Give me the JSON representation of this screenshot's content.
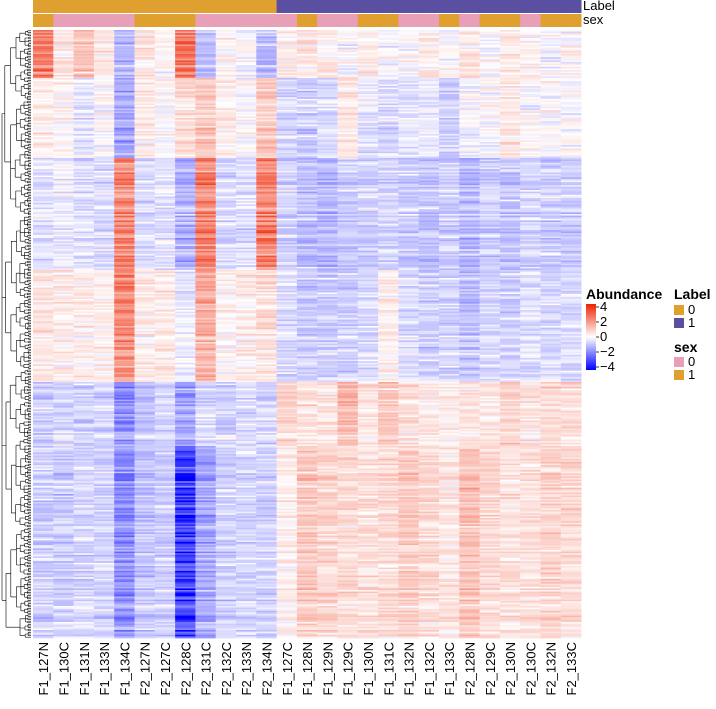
{
  "chart_data": {
    "type": "heatmap",
    "title": "",
    "samples": [
      "F1_127N",
      "F1_130C",
      "F1_131N",
      "F1_133N",
      "F1_134C",
      "F2_127N",
      "F2_127C",
      "F2_128C",
      "F2_131C",
      "F2_132C",
      "F2_133N",
      "F2_134N",
      "F1_127C",
      "F1_128N",
      "F1_129N",
      "F1_129C",
      "F1_130N",
      "F1_131C",
      "F1_132N",
      "F1_132C",
      "F1_133C",
      "F2_128N",
      "F2_129C",
      "F2_130N",
      "F2_130C",
      "F2_132N",
      "F2_133C"
    ],
    "annotations": [
      {
        "name": "Label",
        "values": [
          0,
          0,
          0,
          0,
          0,
          0,
          0,
          0,
          0,
          0,
          0,
          0,
          1,
          1,
          1,
          1,
          1,
          1,
          1,
          1,
          1,
          1,
          1,
          1,
          1,
          1,
          1
        ]
      },
      {
        "name": "sex",
        "values": [
          1,
          0,
          0,
          0,
          0,
          1,
          1,
          1,
          0,
          0,
          0,
          0,
          0,
          1,
          0,
          0,
          1,
          1,
          0,
          0,
          1,
          0,
          1,
          1,
          0,
          1,
          1
        ]
      }
    ],
    "annotation_colors": {
      "Label": {
        "0": "#E0A030",
        "1": "#5A4FA0"
      },
      "sex": {
        "0": "#E8A0B8",
        "1": "#E0A030"
      }
    },
    "color_scale": {
      "name": "Abundance",
      "range": [
        -4,
        4
      ],
      "ticks": [
        4,
        2,
        0,
        -2,
        -4
      ],
      "tick_labels": [
        "4",
        "2",
        "0",
        "−2",
        "−4"
      ],
      "low": "#0000FF",
      "mid": "#FFFFFF",
      "high": "#EE2200"
    },
    "row_dendrogram": true,
    "column_dendrogram": false,
    "legend_position": "right",
    "row_blocks": [
      {
        "rows": 30,
        "profile": [
          2.0,
          0.3,
          0.8,
          0.2,
          -0.8,
          0.3,
          0.1,
          2.2,
          -0.8,
          0.1,
          0.0,
          -0.8,
          0.2,
          0.3,
          0.2,
          0.0,
          0.2,
          -0.1,
          0.0,
          0.2,
          0.0,
          0.3,
          0.0,
          0.2,
          0.1,
          -0.1,
          0.0
        ]
      },
      {
        "rows": 50,
        "profile": [
          0.2,
          0.1,
          -0.3,
          0.0,
          -1.2,
          0.2,
          0.0,
          0.5,
          0.8,
          0.2,
          0.0,
          0.8,
          -0.5,
          -0.6,
          -0.4,
          0.3,
          -0.3,
          -0.4,
          -0.3,
          -0.2,
          -0.6,
          -0.1,
          0.0,
          0.3,
          0.0,
          0.0,
          0.0
        ]
      },
      {
        "rows": 70,
        "profile": [
          -0.3,
          -0.2,
          -0.3,
          -0.4,
          2.0,
          -0.4,
          -0.3,
          -1.0,
          2.0,
          -0.4,
          -0.4,
          2.0,
          -0.5,
          -0.8,
          -0.9,
          -0.6,
          -0.6,
          -0.5,
          -0.6,
          -0.7,
          -0.6,
          -0.9,
          -0.6,
          -0.7,
          -0.5,
          -0.6,
          -0.6
        ]
      },
      {
        "rows": 70,
        "profile": [
          0.3,
          0.2,
          0.2,
          0.2,
          1.8,
          0.2,
          0.3,
          -0.2,
          1.2,
          0.1,
          0.2,
          0.4,
          -0.4,
          -0.6,
          -0.6,
          -0.5,
          -0.4,
          0.2,
          -0.4,
          -0.5,
          -0.5,
          -0.7,
          -0.4,
          -0.5,
          -0.3,
          -0.4,
          -0.4
        ]
      },
      {
        "rows": 40,
        "profile": [
          -0.6,
          -0.5,
          -0.5,
          -0.5,
          -1.5,
          -0.7,
          -0.5,
          -1.2,
          -0.4,
          -0.5,
          -0.4,
          -0.5,
          0.5,
          0.4,
          0.3,
          1.0,
          0.3,
          0.8,
          0.4,
          0.3,
          0.2,
          0.4,
          0.3,
          0.6,
          0.3,
          0.5,
          0.4
        ]
      },
      {
        "rows": 120,
        "profile": [
          -0.6,
          -0.6,
          -0.5,
          -0.5,
          -1.6,
          -0.7,
          -0.6,
          -3.0,
          -1.2,
          -0.5,
          -0.5,
          -0.5,
          0.2,
          0.8,
          0.6,
          0.5,
          0.4,
          0.5,
          0.7,
          0.5,
          0.3,
          0.9,
          0.5,
          0.4,
          0.4,
          0.6,
          0.5
        ]
      }
    ]
  },
  "legend": {
    "abundance_title": "Abundance",
    "label_title": "Label",
    "label_items": [
      "0",
      "1"
    ],
    "sex_title": "sex",
    "sex_items": [
      "0",
      "1"
    ]
  },
  "annotation_row_labels": [
    "Label",
    "sex"
  ]
}
